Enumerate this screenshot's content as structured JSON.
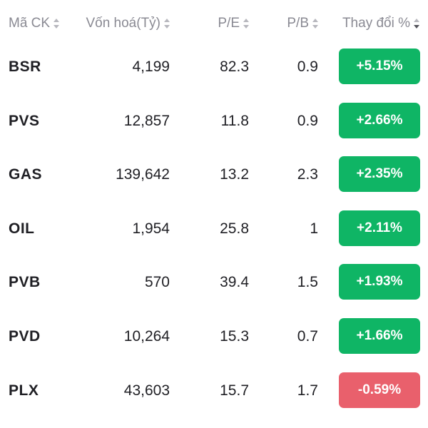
{
  "colors": {
    "positive": "#0fb565",
    "negative": "#e9606c",
    "header_text": "#8a8a93",
    "body_text": "#1f1f24"
  },
  "header": {
    "code": "Mã CK",
    "market_cap": "Vốn hoá(Tỷ)",
    "pe": "P/E",
    "pb": "P/B",
    "change": "Thay đổi %"
  },
  "rows": [
    {
      "code": "BSR",
      "market_cap": "4,199",
      "pe": "82.3",
      "pb": "0.9",
      "change": "+5.15%"
    },
    {
      "code": "PVS",
      "market_cap": "12,857",
      "pe": "11.8",
      "pb": "0.9",
      "change": "+2.66%"
    },
    {
      "code": "GAS",
      "market_cap": "139,642",
      "pe": "13.2",
      "pb": "2.3",
      "change": "+2.35%"
    },
    {
      "code": "OIL",
      "market_cap": "1,954",
      "pe": "25.8",
      "pb": "1",
      "change": "+2.11%"
    },
    {
      "code": "PVB",
      "market_cap": "570",
      "pe": "39.4",
      "pb": "1.5",
      "change": "+1.93%"
    },
    {
      "code": "PVD",
      "market_cap": "10,264",
      "pe": "15.3",
      "pb": "0.7",
      "change": "+1.66%"
    },
    {
      "code": "PLX",
      "market_cap": "43,603",
      "pe": "15.7",
      "pb": "1.7",
      "change": "-0.59%"
    }
  ]
}
